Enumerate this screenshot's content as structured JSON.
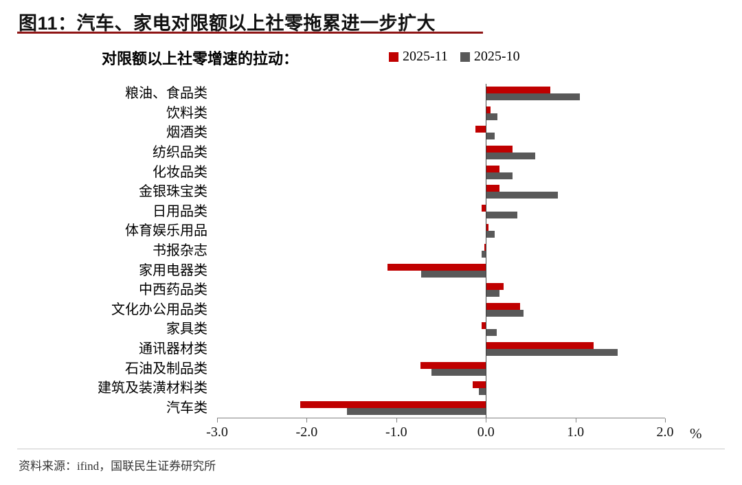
{
  "header": {
    "title": "图11：汽车、家电对限额以上社零拖累进一步扩大"
  },
  "chart": {
    "subtitle": "对限额以上社零增速的拉动：",
    "unit_label": "%"
  },
  "colors": {
    "series_2025_11": "#C00000",
    "series_2025_10": "#595959",
    "title_underline": "#8E1414"
  },
  "chart_data": {
    "type": "bar",
    "orientation": "horizontal",
    "title": "对限额以上社零增速的拉动：",
    "categories": [
      "粮油、食品类",
      "饮料类",
      "烟酒类",
      "纺织品类",
      "化妆品类",
      "金银珠宝类",
      "日用品类",
      "体育娱乐用品",
      "书报杂志",
      "家用电器类",
      "中西药品类",
      "文化办公用品类",
      "家具类",
      "通讯器材类",
      "石油及制品类",
      "建筑及装潢材料类",
      "汽车类"
    ],
    "series": [
      {
        "name": "2025-11",
        "color": "#C00000",
        "values": [
          0.72,
          0.05,
          -0.12,
          0.3,
          0.15,
          0.15,
          -0.05,
          0.03,
          -0.02,
          -1.1,
          0.2,
          0.38,
          -0.05,
          1.2,
          -0.73,
          -0.15,
          -2.07
        ]
      },
      {
        "name": "2025-10",
        "color": "#595959",
        "values": [
          1.05,
          0.13,
          0.1,
          0.55,
          0.3,
          0.8,
          0.35,
          0.1,
          -0.05,
          -0.72,
          0.15,
          0.42,
          0.12,
          1.47,
          -0.61,
          -0.08,
          -1.55
        ]
      }
    ],
    "xlim": [
      -3.0,
      2.0
    ],
    "xticks": [
      "-3.0",
      "-2.0",
      "-1.0",
      "0.0",
      "1.0",
      "2.0"
    ],
    "xlabel": "%",
    "legend_position": "top",
    "grid": false
  },
  "footer": {
    "source": "资料来源：ifind，国联民生证券研究所"
  }
}
